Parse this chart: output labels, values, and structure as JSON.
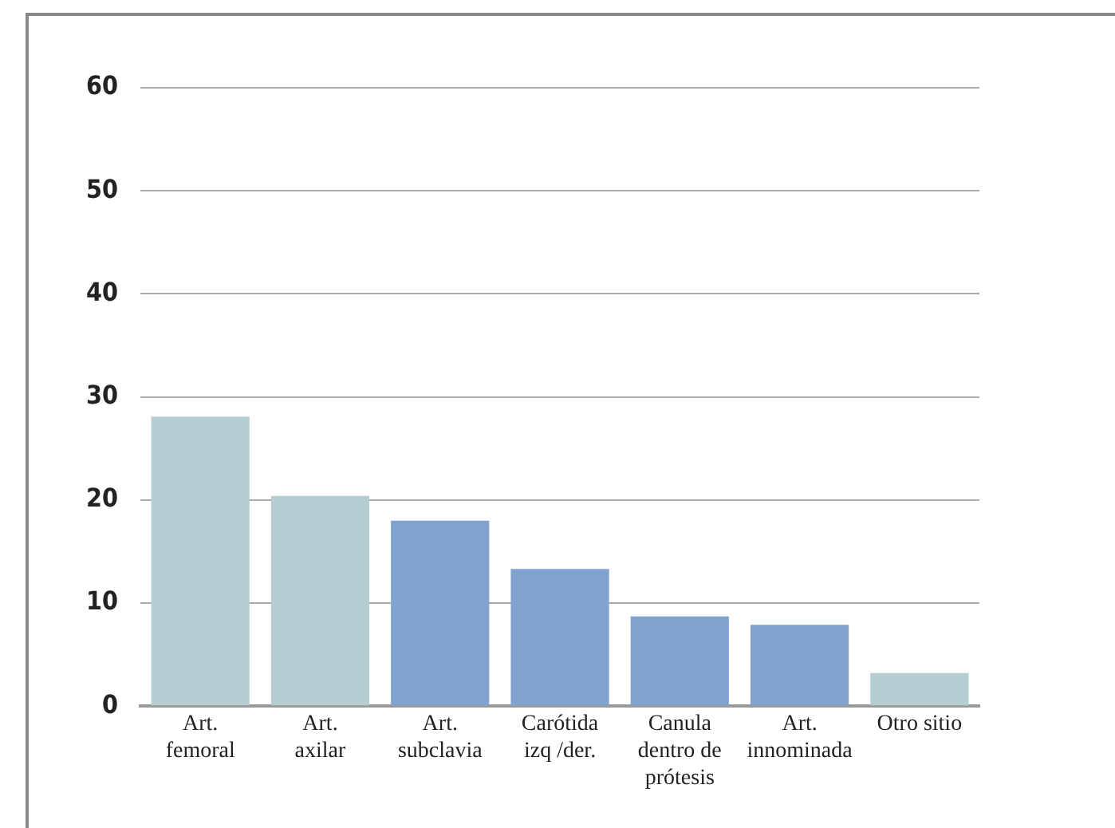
{
  "chart_data": {
    "type": "bar",
    "categories": [
      "Art. femoral",
      "Art. axilar",
      "Art. subclavia",
      "Carótida izq /der.",
      "Canula dentro de prótesis",
      "Art. innominada",
      "Otro sitio"
    ],
    "values": [
      28.1,
      20.4,
      18,
      13.3,
      8.7,
      7.9,
      3.2
    ],
    "colors": [
      "#b5ced1",
      "#b5ced1",
      "#82a2cf",
      "#82a2cf",
      "#82a2cf",
      "#82a2cf",
      "#b5ced1"
    ],
    "ylim": [
      0,
      60
    ],
    "yticks": [
      0,
      10,
      20,
      30,
      40,
      50,
      60
    ],
    "grid": "y",
    "legend": false
  }
}
